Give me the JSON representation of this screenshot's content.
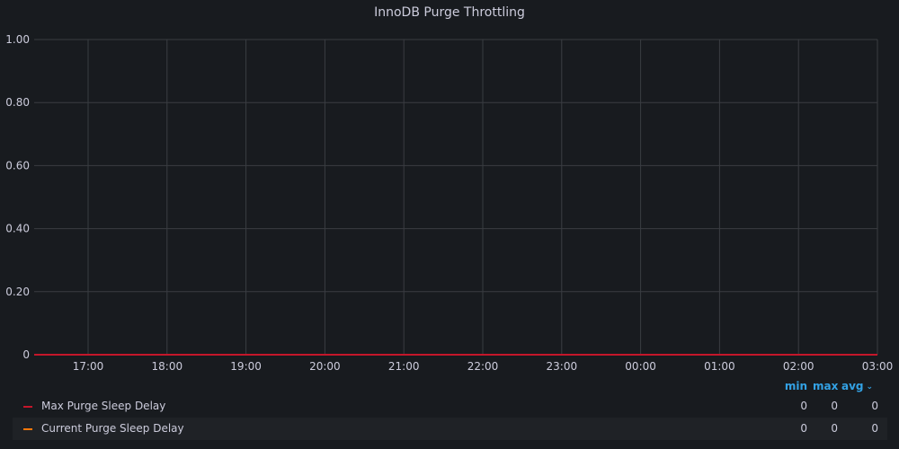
{
  "panel": {
    "title": "InnoDB Purge Throttling"
  },
  "chart_data": {
    "type": "line",
    "title": "InnoDB Purge Throttling",
    "xlabel": "",
    "ylabel": "",
    "x": [
      "17:00",
      "18:00",
      "19:00",
      "20:00",
      "21:00",
      "22:00",
      "23:00",
      "00:00",
      "01:00",
      "02:00",
      "03:00"
    ],
    "xlim": [
      "16:19",
      "03:00"
    ],
    "ylim": [
      0,
      1.0
    ],
    "y_ticks": [
      "0",
      "0.20",
      "0.40",
      "0.60",
      "0.80",
      "1.00"
    ],
    "grid": true,
    "legend_placement": "bottom",
    "series": [
      {
        "name": "Max Purge Sleep Delay",
        "color": "#c4162a",
        "values": [
          0,
          0,
          0,
          0,
          0,
          0,
          0,
          0,
          0,
          0,
          0
        ]
      },
      {
        "name": "Current Purge Sleep Delay",
        "color": "#ff780a",
        "values": [
          0,
          0,
          0,
          0,
          0,
          0,
          0,
          0,
          0,
          0,
          0
        ]
      }
    ]
  },
  "legend": {
    "columns": [
      "min",
      "max",
      "avg"
    ],
    "sort_icon": "chevron-down-icon",
    "rows": [
      {
        "name": "Max Purge Sleep Delay",
        "color": "#c4162a",
        "min": "0",
        "max": "0",
        "avg": "0"
      },
      {
        "name": "Current Purge Sleep Delay",
        "color": "#ff780a",
        "min": "0",
        "max": "0",
        "avg": "0"
      }
    ]
  },
  "colors": {
    "background": "#181b1f",
    "grid": "#3a3d42",
    "text": "#ccccdc",
    "accent": "#33a2e5"
  }
}
